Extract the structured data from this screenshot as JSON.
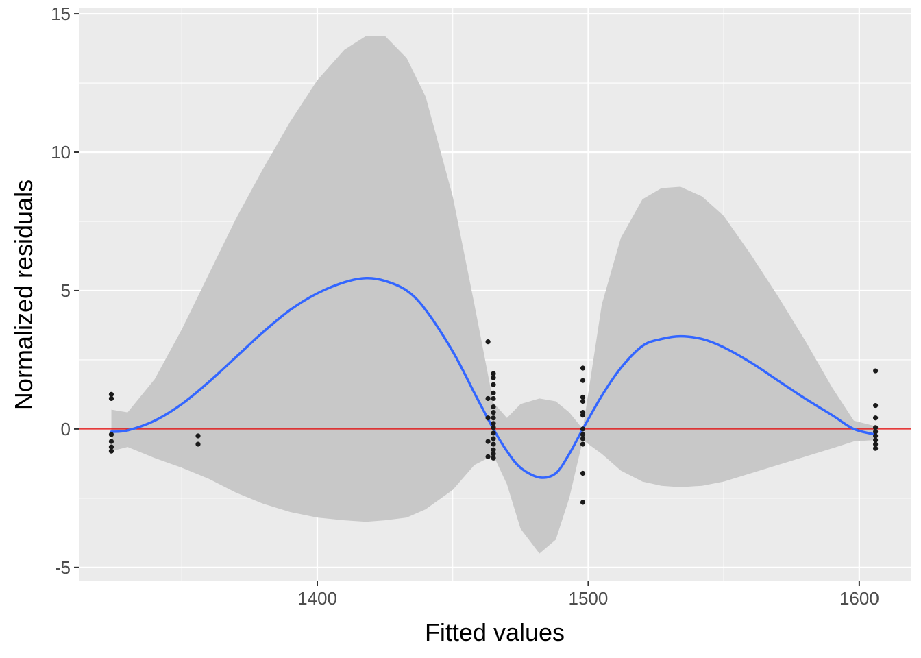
{
  "chart_data": {
    "type": "scatter",
    "xlabel": "Fitted values",
    "ylabel": "Normalized residuals",
    "xlim": [
      1312,
      1619
    ],
    "ylim": [
      -5.5,
      15.2
    ],
    "x_ticks": [
      1400,
      1500,
      1600
    ],
    "y_ticks": [
      -5,
      0,
      5,
      10,
      15
    ],
    "x_tick_labels": [
      "1400",
      "1500",
      "1600"
    ],
    "y_tick_labels": [
      "-5",
      "0",
      "5",
      "10",
      "15"
    ],
    "grid": true,
    "legend": "none",
    "reference_line": {
      "y": 0,
      "color": "#e02020"
    },
    "colors": {
      "panel": "#ebebeb",
      "grid": "#ffffff",
      "points": "#1a1a1a",
      "smooth": "#3366ff",
      "ribbon": "#c8c8c8"
    },
    "points": [
      [
        1324,
        1.25
      ],
      [
        1324,
        1.1
      ],
      [
        1324,
        -0.2
      ],
      [
        1324,
        -0.45
      ],
      [
        1324,
        -0.65
      ],
      [
        1324,
        -0.8
      ],
      [
        1356,
        -0.25
      ],
      [
        1356,
        -0.55
      ],
      [
        1463,
        3.15
      ],
      [
        1463,
        1.1
      ],
      [
        1463,
        0.4
      ],
      [
        1463,
        -0.45
      ],
      [
        1463,
        -1.0
      ],
      [
        1465,
        2.0
      ],
      [
        1465,
        1.85
      ],
      [
        1465,
        1.6
      ],
      [
        1465,
        1.3
      ],
      [
        1465,
        1.1
      ],
      [
        1465,
        0.8
      ],
      [
        1465,
        0.6
      ],
      [
        1465,
        0.4
      ],
      [
        1465,
        0.2
      ],
      [
        1465,
        0.05
      ],
      [
        1465,
        -0.15
      ],
      [
        1465,
        -0.35
      ],
      [
        1465,
        -0.55
      ],
      [
        1465,
        -0.75
      ],
      [
        1465,
        -0.9
      ],
      [
        1465,
        -1.05
      ],
      [
        1498,
        2.2
      ],
      [
        1498,
        1.75
      ],
      [
        1498,
        1.15
      ],
      [
        1498,
        1.0
      ],
      [
        1498,
        0.6
      ],
      [
        1498,
        0.5
      ],
      [
        1498,
        0.0
      ],
      [
        1498,
        -0.2
      ],
      [
        1498,
        -0.35
      ],
      [
        1498,
        -0.55
      ],
      [
        1498,
        -1.6
      ],
      [
        1498,
        -2.65
      ],
      [
        1606,
        2.1
      ],
      [
        1606,
        0.85
      ],
      [
        1606,
        0.4
      ],
      [
        1606,
        0.05
      ],
      [
        1606,
        -0.1
      ],
      [
        1606,
        -0.25
      ],
      [
        1606,
        -0.4
      ],
      [
        1606,
        -0.55
      ],
      [
        1606,
        -0.7
      ]
    ],
    "smooth": {
      "x": [
        1324,
        1330,
        1340,
        1350,
        1360,
        1370,
        1380,
        1390,
        1400,
        1410,
        1418,
        1425,
        1433,
        1440,
        1450,
        1458,
        1465,
        1470,
        1475,
        1482,
        1488,
        1493,
        1498,
        1505,
        1512,
        1520,
        1527,
        1534,
        1542,
        1550,
        1560,
        1570,
        1580,
        1590,
        1598,
        1606
      ],
      "y": [
        -0.1,
        -0.05,
        0.3,
        0.9,
        1.7,
        2.6,
        3.5,
        4.3,
        4.9,
        5.3,
        5.45,
        5.35,
        5.0,
        4.3,
        2.8,
        1.3,
        0.0,
        -0.8,
        -1.4,
        -1.75,
        -1.6,
        -0.9,
        0.0,
        1.2,
        2.2,
        3.0,
        3.25,
        3.35,
        3.25,
        2.95,
        2.4,
        1.75,
        1.1,
        0.5,
        0.0,
        -0.2
      ],
      "upper": [
        0.7,
        0.6,
        1.8,
        3.6,
        5.6,
        7.6,
        9.4,
        11.1,
        12.6,
        13.7,
        14.2,
        14.2,
        13.4,
        12.0,
        8.4,
        4.5,
        0.95,
        0.4,
        0.9,
        1.1,
        1.0,
        0.6,
        0.0,
        4.5,
        6.9,
        8.3,
        8.7,
        8.75,
        8.4,
        7.7,
        6.3,
        4.8,
        3.2,
        1.5,
        0.3,
        0.1
      ],
      "lower": [
        -0.8,
        -0.65,
        -1.05,
        -1.4,
        -1.8,
        -2.3,
        -2.7,
        -3.0,
        -3.2,
        -3.3,
        -3.35,
        -3.3,
        -3.2,
        -2.9,
        -2.2,
        -1.3,
        -0.95,
        -2.0,
        -3.6,
        -4.5,
        -4.0,
        -2.5,
        -0.4,
        -0.9,
        -1.5,
        -1.9,
        -2.05,
        -2.1,
        -2.05,
        -1.9,
        -1.6,
        -1.3,
        -1.0,
        -0.7,
        -0.45,
        -0.4
      ]
    }
  }
}
